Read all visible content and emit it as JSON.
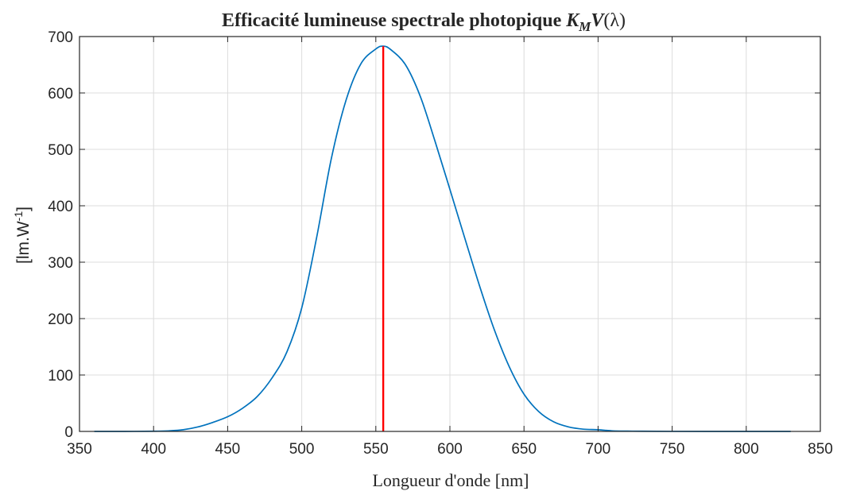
{
  "chart_data": {
    "type": "line",
    "title": {
      "prefix": "Efficacité lumineuse spectrale photopique ",
      "symbol_main": "K",
      "symbol_sub": "M",
      "symbol_func": "V",
      "argument": "(λ)"
    },
    "xlabel": "Longueur d'onde [nm]",
    "ylabel": {
      "base": "[lm.W",
      "superscript": "-1",
      "close": "]"
    },
    "xlim": [
      350,
      850
    ],
    "ylim": [
      0,
      700
    ],
    "x_ticks": [
      350,
      400,
      450,
      500,
      550,
      600,
      650,
      700,
      750,
      800,
      850
    ],
    "y_ticks": [
      0,
      100,
      200,
      300,
      400,
      500,
      600,
      700
    ],
    "grid": true,
    "series": [
      {
        "color": "#0072BD",
        "x": [
          360,
          380,
          400,
          410,
          420,
          430,
          440,
          450,
          460,
          470,
          480,
          490,
          500,
          510,
          520,
          530,
          540,
          550,
          555,
          560,
          570,
          580,
          590,
          600,
          610,
          620,
          630,
          640,
          650,
          660,
          670,
          680,
          690,
          700,
          710,
          720,
          730,
          750,
          780,
          830
        ],
        "y": [
          0,
          0,
          0.3,
          1,
          3,
          8,
          16,
          26,
          41,
          62,
          95,
          141,
          219,
          343,
          484,
          588,
          652,
          678,
          683,
          677,
          650,
          594,
          514,
          429,
          343,
          258,
          180,
          115,
          66,
          35,
          17,
          8,
          4,
          3,
          1,
          0.5,
          0.3,
          0.1,
          0,
          0
        ]
      }
    ],
    "marker_line": {
      "x": 555,
      "y_from": 0,
      "y_to": 683,
      "color": "#FF0000"
    }
  }
}
